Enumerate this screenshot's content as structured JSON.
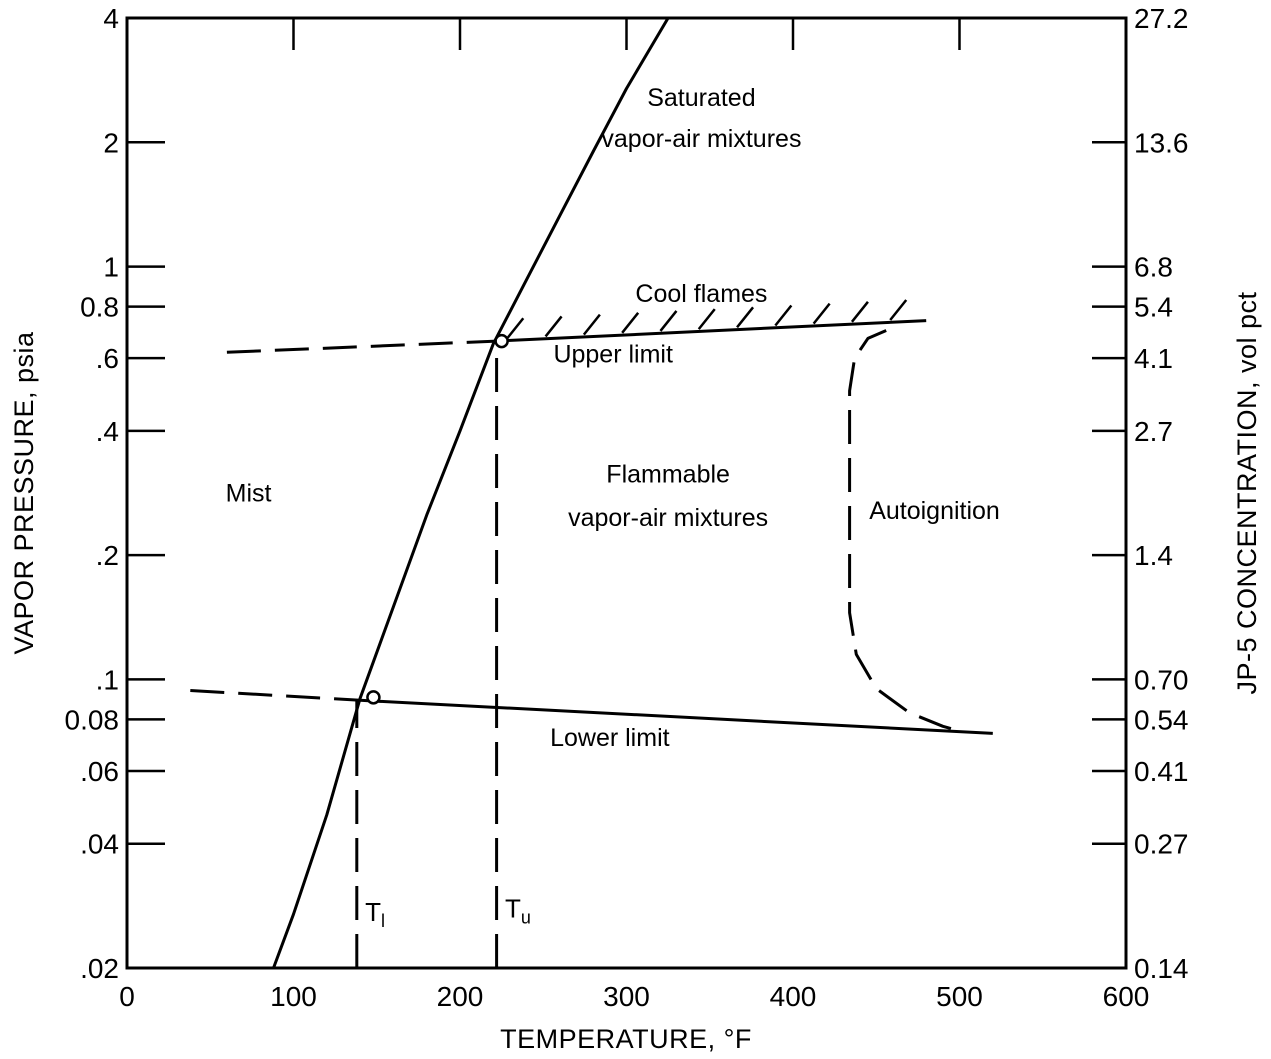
{
  "chart_data": {
    "type": "line",
    "xlabel": "TEMPERATURE, °F",
    "ylabel": "VAPOR PRESSURE, psia",
    "y2label": "JP-5 CONCENTRATION, vol pct",
    "xlim": [
      0,
      600
    ],
    "ylim": [
      0.02,
      4
    ],
    "y_scale": "log",
    "grid": false,
    "x_ticks": [
      {
        "value": 0,
        "label": "0"
      },
      {
        "value": 100,
        "label": "100"
      },
      {
        "value": 200,
        "label": "200"
      },
      {
        "value": 300,
        "label": "300"
      },
      {
        "value": 400,
        "label": "400"
      },
      {
        "value": 500,
        "label": "500"
      },
      {
        "value": 600,
        "label": "600"
      }
    ],
    "y_ticks": [
      {
        "value": 0.02,
        "label": ".02"
      },
      {
        "value": 0.04,
        "label": ".04"
      },
      {
        "value": 0.06,
        "label": ".06"
      },
      {
        "value": 0.08,
        "label": "0.08"
      },
      {
        "value": 0.1,
        "label": ".1"
      },
      {
        "value": 0.2,
        "label": ".2"
      },
      {
        "value": 0.4,
        "label": ".4"
      },
      {
        "value": 0.6,
        "label": ".6"
      },
      {
        "value": 0.8,
        "label": "0.8"
      },
      {
        "value": 1,
        "label": "1"
      },
      {
        "value": 2,
        "label": "2"
      },
      {
        "value": 4,
        "label": "4"
      }
    ],
    "y2_ticks": [
      {
        "value": 0.02,
        "label": "0.14"
      },
      {
        "value": 0.04,
        "label": "0.27"
      },
      {
        "value": 0.06,
        "label": "0.41"
      },
      {
        "value": 0.08,
        "label": "0.54"
      },
      {
        "value": 0.1,
        "label": "0.70"
      },
      {
        "value": 0.2,
        "label": "1.4"
      },
      {
        "value": 0.4,
        "label": "2.7"
      },
      {
        "value": 0.6,
        "label": "4.1"
      },
      {
        "value": 0.8,
        "label": "5.4"
      },
      {
        "value": 1,
        "label": "6.8"
      },
      {
        "value": 2,
        "label": "13.6"
      },
      {
        "value": 4,
        "label": "27.2"
      }
    ],
    "series": [
      {
        "key": "saturation",
        "style": "solid",
        "points": [
          [
            88,
            0.02
          ],
          [
            100,
            0.027
          ],
          [
            120,
            0.047
          ],
          [
            140,
            0.09
          ],
          [
            160,
            0.15
          ],
          [
            180,
            0.25
          ],
          [
            200,
            0.4
          ],
          [
            220,
            0.65
          ],
          [
            240,
            0.93
          ],
          [
            260,
            1.33
          ],
          [
            280,
            1.9
          ],
          [
            300,
            2.7
          ],
          [
            325,
            4
          ]
        ]
      },
      {
        "key": "upper-limit-dashed",
        "style": "dashed",
        "points": [
          [
            60,
            0.62
          ],
          [
            222,
            0.66
          ]
        ]
      },
      {
        "key": "upper-limit",
        "style": "solid",
        "points": [
          [
            222,
            0.66
          ],
          [
            480,
            0.74
          ]
        ]
      },
      {
        "key": "lower-limit-dashed",
        "style": "dashed",
        "points": [
          [
            38,
            0.094
          ],
          [
            140,
            0.089
          ]
        ]
      },
      {
        "key": "lower-limit",
        "style": "solid",
        "points": [
          [
            140,
            0.089
          ],
          [
            520,
            0.074
          ]
        ]
      },
      {
        "key": "autoignition",
        "style": "dashed",
        "points": [
          [
            456,
            0.7
          ],
          [
            445,
            0.67
          ],
          [
            437,
            0.6
          ],
          [
            434,
            0.5
          ],
          [
            434,
            0.3
          ],
          [
            434,
            0.2
          ],
          [
            434,
            0.145
          ],
          [
            438,
            0.115
          ],
          [
            450,
            0.095
          ],
          [
            470,
            0.083
          ],
          [
            490,
            0.077
          ],
          [
            500,
            0.075
          ]
        ]
      },
      {
        "key": "T1-line",
        "style": "dashed",
        "points": [
          [
            138,
            0.02
          ],
          [
            138,
            0.089
          ]
        ]
      },
      {
        "key": "Tu-line",
        "style": "dashed",
        "points": [
          [
            222,
            0.02
          ],
          [
            222,
            0.66
          ]
        ]
      }
    ],
    "hatch": {
      "from_x": 232,
      "to_x": 470,
      "step_x": 23
    },
    "markers": [
      {
        "key": "upper-open-circle",
        "x": 225,
        "y": 0.66
      },
      {
        "key": "lower-open-circle",
        "x": 148,
        "y": 0.0905
      }
    ],
    "annotations": [
      {
        "key": "saturated-1",
        "text": "Saturated",
        "x": 345,
        "y": 2.45
      },
      {
        "key": "saturated-2",
        "text": "vapor-air mixtures",
        "x": 345,
        "y": 1.95
      },
      {
        "key": "cool-flames",
        "text": "Cool flames",
        "x": 345,
        "y": 0.82
      },
      {
        "key": "upper-limit-label",
        "text": "Upper limit",
        "x": 292,
        "y": 0.585
      },
      {
        "key": "mist",
        "text": "Mist",
        "x": 73,
        "y": 0.27
      },
      {
        "key": "flammable-1",
        "text": "Flammable",
        "x": 325,
        "y": 0.3
      },
      {
        "key": "flammable-2",
        "text": "vapor-air mixtures",
        "x": 325,
        "y": 0.235
      },
      {
        "key": "autoignition-label",
        "text": "Autoignition",
        "x": 485,
        "y": 0.245
      },
      {
        "key": "lower-limit-label",
        "text": "Lower limit",
        "x": 290,
        "y": 0.069
      }
    ],
    "T1_label": {
      "main": "T",
      "sub": "l",
      "x": 143,
      "y": 0.026
    },
    "Tu_label": {
      "main": "T",
      "sub": "u",
      "x": 227,
      "y": 0.0265
    }
  }
}
